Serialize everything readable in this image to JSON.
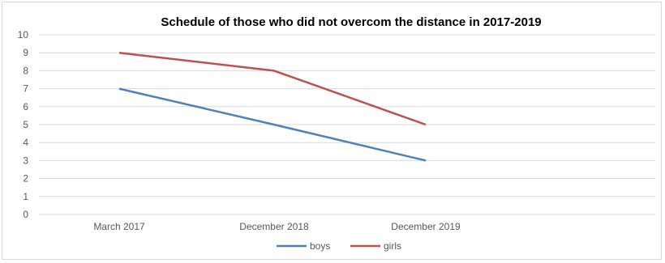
{
  "chart_data": {
    "type": "line",
    "title": "Schedule of those who did not overcom the distance in 2017-2019",
    "categories": [
      "March 2017",
      "December 2018",
      "December 2019"
    ],
    "series": [
      {
        "name": "boys",
        "values": [
          7,
          5,
          3
        ],
        "color": "#4f81bd"
      },
      {
        "name": "girls",
        "values": [
          9,
          8,
          5
        ],
        "color": "#c0504d"
      }
    ],
    "ylim": [
      0,
      10
    ],
    "yticks": [
      "0",
      "1",
      "2",
      "3",
      "4",
      "5",
      "6",
      "7",
      "8",
      "9",
      "10"
    ],
    "grid": true,
    "legend": "bottom"
  }
}
